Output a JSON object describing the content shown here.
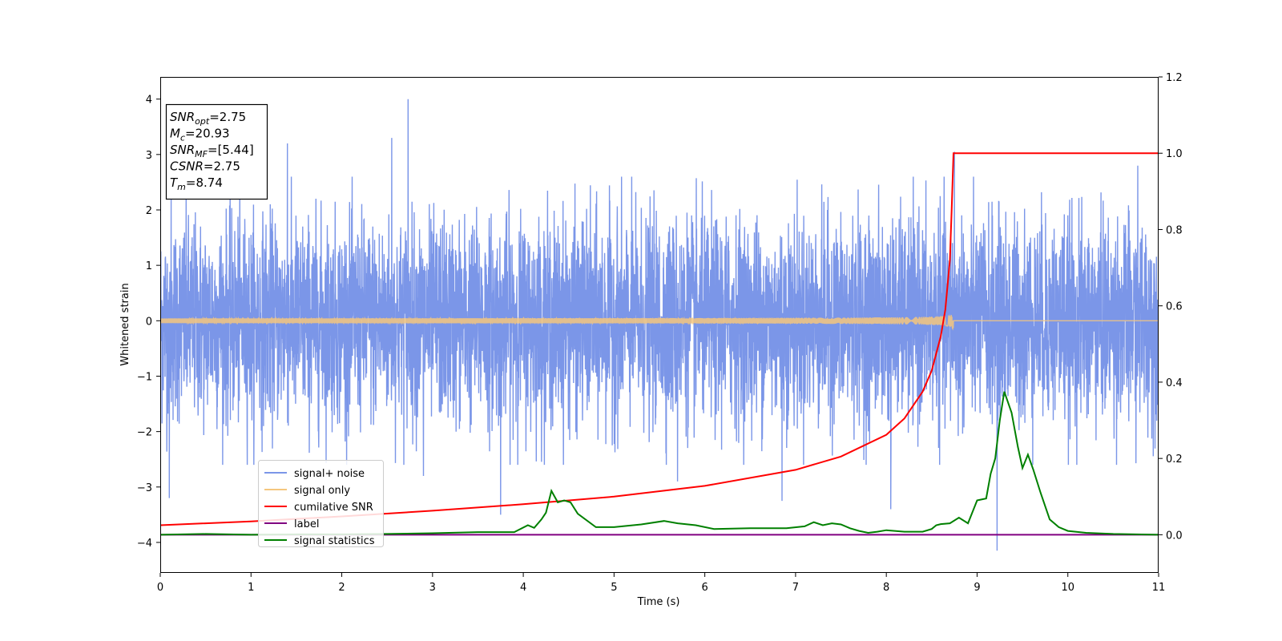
{
  "chart_data": {
    "type": "line",
    "xlabel": "Time (s)",
    "ylabel": "Whitened strain",
    "xlim": [
      0,
      11
    ],
    "ylim": [
      -4.55,
      4.4
    ],
    "y2lim": [
      -0.1,
      1.2
    ],
    "x_ticks": [
      "0",
      "1",
      "2",
      "3",
      "4",
      "5",
      "6",
      "7",
      "8",
      "9",
      "10",
      "11"
    ],
    "y_ticks": [
      "4",
      "3",
      "2",
      "1",
      "0",
      "−1",
      "−2",
      "−3",
      "−4"
    ],
    "y2_ticks": [
      "1.2",
      "1.0",
      "0.8",
      "0.6",
      "0.4",
      "0.2",
      "0.0"
    ],
    "grid": false,
    "legend_position": "lower-left",
    "annotation": [
      {
        "base": "SNR",
        "sub": "opt",
        "value": "=2.75"
      },
      {
        "base": "M",
        "sub": "c",
        "value": "=20.93"
      },
      {
        "base": "SNR",
        "sub": "MF",
        "value": "=[5.44]"
      },
      {
        "base": "CSNR",
        "sub": "",
        "value": "=2.75"
      },
      {
        "base": "T",
        "sub": "m",
        "value": "=8.74"
      }
    ],
    "series": [
      {
        "name": "signal+ noise",
        "color": "#7b96e8",
        "axis": "left",
        "style": "dense-noise",
        "noise_sigma": 0.9,
        "envelope_extremes": [
          [
            0.12,
            2.3
          ],
          [
            0.1,
            -3.2
          ],
          [
            1.4,
            3.2
          ],
          [
            2.55,
            3.3
          ],
          [
            2.73,
            4.0
          ],
          [
            2.9,
            -2.8
          ],
          [
            3.75,
            -3.5
          ],
          [
            5.7,
            -2.9
          ],
          [
            6.85,
            -3.25
          ],
          [
            8.05,
            -3.4
          ],
          [
            8.75,
            -3.15
          ],
          [
            8.75,
            3.05
          ],
          [
            9.22,
            -4.15
          ],
          [
            10.77,
            2.8
          ]
        ]
      },
      {
        "name": "signal only",
        "color": "#f5c77e",
        "axis": "left",
        "style": "chirp",
        "merger_time": 8.74,
        "peak_amplitude": 0.55
      },
      {
        "name": "cumilative SNR",
        "color": "#ff0000",
        "axis": "right",
        "x": [
          0,
          1,
          2,
          3,
          4,
          5,
          6,
          7,
          7.5,
          8,
          8.2,
          8.4,
          8.5,
          8.6,
          8.65,
          8.7,
          8.72,
          8.74,
          11
        ],
        "y": [
          0.025,
          0.035,
          0.048,
          0.063,
          0.08,
          0.1,
          0.128,
          0.17,
          0.205,
          0.262,
          0.305,
          0.375,
          0.43,
          0.52,
          0.59,
          0.72,
          0.85,
          1.0,
          1.0
        ]
      },
      {
        "name": "label",
        "color": "#800080",
        "axis": "right",
        "x": [
          0,
          11
        ],
        "y": [
          0,
          0
        ]
      },
      {
        "name": "signal statistics",
        "color": "#008000",
        "axis": "right",
        "x": [
          0,
          0.5,
          1,
          1.5,
          2,
          2.5,
          3,
          3.5,
          3.9,
          4.05,
          4.12,
          4.2,
          4.25,
          4.31,
          4.38,
          4.45,
          4.52,
          4.6,
          4.8,
          5.0,
          5.3,
          5.55,
          5.7,
          5.9,
          6.1,
          6.5,
          6.9,
          7.1,
          7.2,
          7.3,
          7.4,
          7.5,
          7.6,
          7.7,
          7.8,
          7.9,
          8.0,
          8.2,
          8.4,
          8.5,
          8.55,
          8.6,
          8.7,
          8.8,
          8.9,
          9.0,
          9.1,
          9.15,
          9.2,
          9.25,
          9.3,
          9.38,
          9.45,
          9.5,
          9.56,
          9.62,
          9.7,
          9.8,
          9.9,
          10.0,
          10.2,
          10.5,
          11.0
        ],
        "y": [
          0.0,
          0.002,
          0.0,
          0.001,
          0.001,
          0.002,
          0.004,
          0.007,
          0.007,
          0.025,
          0.018,
          0.04,
          0.058,
          0.115,
          0.085,
          0.09,
          0.085,
          0.055,
          0.02,
          0.02,
          0.027,
          0.036,
          0.03,
          0.025,
          0.015,
          0.017,
          0.017,
          0.022,
          0.033,
          0.025,
          0.03,
          0.027,
          0.017,
          0.01,
          0.005,
          0.008,
          0.012,
          0.008,
          0.008,
          0.015,
          0.025,
          0.028,
          0.03,
          0.045,
          0.03,
          0.09,
          0.095,
          0.16,
          0.2,
          0.3,
          0.375,
          0.32,
          0.23,
          0.175,
          0.21,
          0.17,
          0.11,
          0.04,
          0.02,
          0.01,
          0.005,
          0.002,
          0.0
        ]
      }
    ]
  }
}
